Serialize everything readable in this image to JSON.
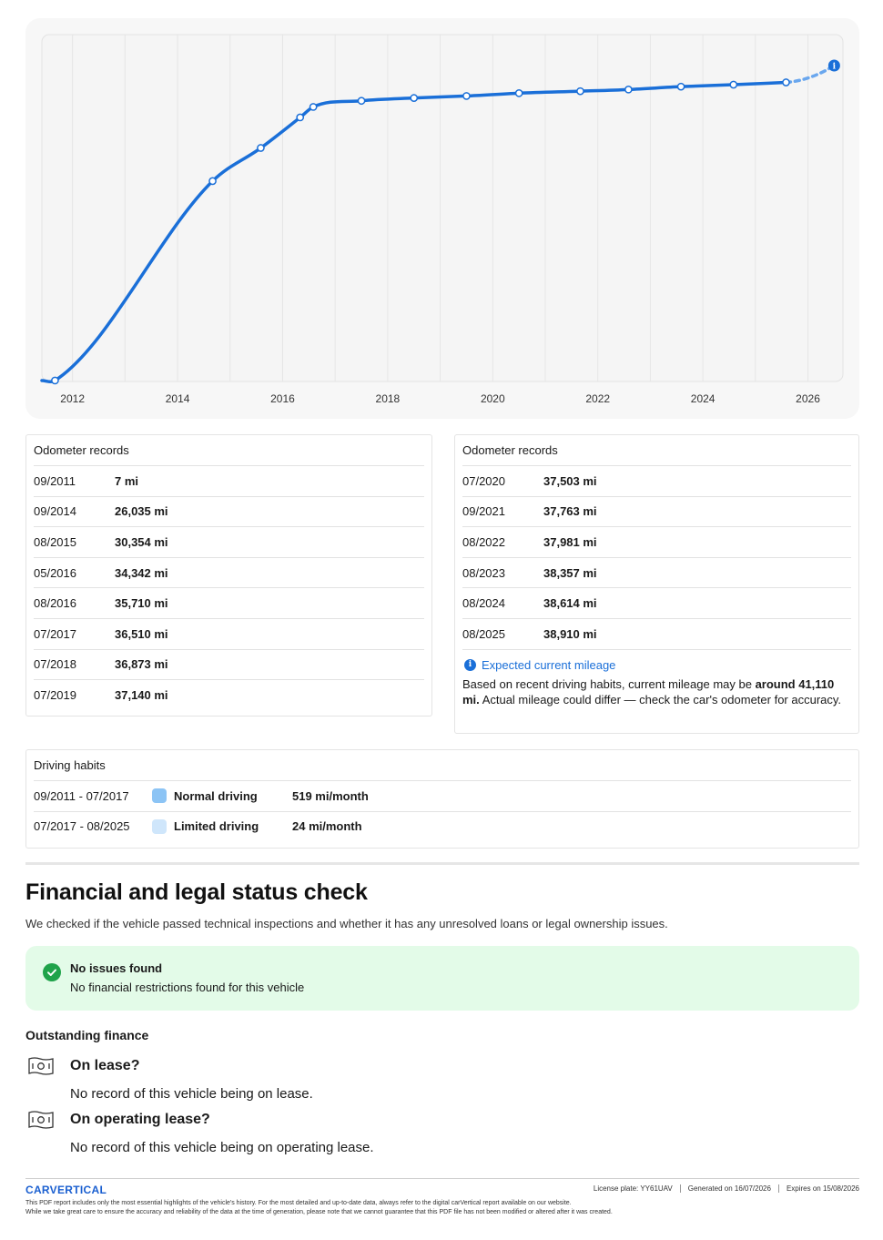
{
  "chart_data": {
    "type": "line",
    "x_tick_labels": [
      "2012",
      "2014",
      "2016",
      "2018",
      "2020",
      "2022",
      "2024",
      "2026"
    ],
    "series": [
      {
        "points": [
          {
            "date": "09/2011",
            "mileage": 7
          },
          {
            "date": "09/2014",
            "mileage": 26035
          },
          {
            "date": "08/2015",
            "mileage": 30354
          },
          {
            "date": "05/2016",
            "mileage": 34342
          },
          {
            "date": "08/2016",
            "mileage": 35710
          },
          {
            "date": "07/2017",
            "mileage": 36510
          },
          {
            "date": "07/2018",
            "mileage": 36873
          },
          {
            "date": "07/2019",
            "mileage": 37140
          },
          {
            "date": "07/2020",
            "mileage": 37503
          },
          {
            "date": "09/2021",
            "mileage": 37763
          },
          {
            "date": "08/2022",
            "mileage": 37981
          },
          {
            "date": "08/2023",
            "mileage": 38357
          },
          {
            "date": "08/2024",
            "mileage": 38614
          },
          {
            "date": "08/2025",
            "mileage": 38910
          }
        ]
      }
    ],
    "projected_point": {
      "date": "07/2026",
      "mileage": 41110
    },
    "ylim": [
      0,
      41110
    ],
    "xlim": [
      "2011-06",
      "2026-09"
    ],
    "grid": true,
    "colors": {
      "line": "#1a6fd8",
      "projection": "#6aa7ee"
    }
  },
  "odometer_left": {
    "title": "Odometer records",
    "records": [
      {
        "date": "09/2011",
        "value": "7 mi"
      },
      {
        "date": "09/2014",
        "value": "26,035 mi"
      },
      {
        "date": "08/2015",
        "value": "30,354 mi"
      },
      {
        "date": "05/2016",
        "value": "34,342 mi"
      },
      {
        "date": "08/2016",
        "value": "35,710 mi"
      },
      {
        "date": "07/2017",
        "value": "36,510 mi"
      },
      {
        "date": "07/2018",
        "value": "36,873 mi"
      },
      {
        "date": "07/2019",
        "value": "37,140 mi"
      }
    ]
  },
  "odometer_right": {
    "title": "Odometer records",
    "records": [
      {
        "date": "07/2020",
        "value": "37,503 mi"
      },
      {
        "date": "09/2021",
        "value": "37,763 mi"
      },
      {
        "date": "08/2022",
        "value": "37,981 mi"
      },
      {
        "date": "08/2023",
        "value": "38,357 mi"
      },
      {
        "date": "08/2024",
        "value": "38,614 mi"
      },
      {
        "date": "08/2025",
        "value": "38,910 mi"
      }
    ],
    "expected": {
      "heading": "Expected current mileage",
      "text_before": "Based on recent driving habits, current mileage may be ",
      "text_bold": "around 41,110 mi.",
      "text_after": " Actual mileage could differ — check the car's odometer for accuracy."
    }
  },
  "driving_habits": {
    "title": "Driving habits",
    "rows": [
      {
        "range": "09/2011 - 07/2017",
        "label": "Normal driving",
        "rate": "519 mi/month",
        "color": "#8cc4f5"
      },
      {
        "range": "07/2017 - 08/2025",
        "label": "Limited driving",
        "rate": "24 mi/month",
        "color": "#cfe6fb"
      }
    ]
  },
  "financial": {
    "title": "Financial and legal status check",
    "subtitle": "We checked if the vehicle passed technical inspections and whether it has any unresolved loans or legal ownership issues.",
    "status_title": "No issues found",
    "status_text": "No financial restrictions found for this vehicle",
    "status_color": "#1fa34a",
    "outstanding_title": "Outstanding finance",
    "items": [
      {
        "question": "On lease?",
        "answer": "No record of this vehicle being on lease.",
        "icon": "banknote-icon"
      },
      {
        "question": "On operating lease?",
        "answer": "No record of this vehicle being on operating lease.",
        "icon": "banknote-icon"
      }
    ]
  },
  "footer": {
    "logo": "CARVERTICAL",
    "license_plate": "License plate:  YY61UAV",
    "generated": "Generated on  16/07/2026",
    "expires": "Expires on  15/08/2026",
    "disclaimer_1": "This PDF report includes only the most essential highlights of the vehicle's history. For the most detailed and up-to-date data, always refer to the digital carVertical report available on our website.",
    "disclaimer_2": "While we take great care to ensure the accuracy and reliability of the data at the time of generation, please note that we cannot guarantee that this PDF file has not been modified or altered after it was created."
  }
}
